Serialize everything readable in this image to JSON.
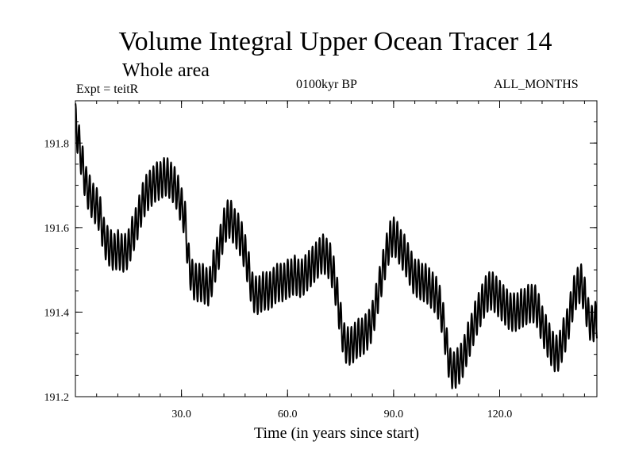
{
  "chart_data": {
    "type": "line",
    "title": "Volume Integral Upper Ocean Tracer 14",
    "subtitle": "Whole area",
    "annotations": {
      "experiment": "Expt = teitR",
      "period": "0100kyr BP",
      "months": "ALL_MONTHS"
    },
    "xlabel": "Time (in years since start)",
    "ylabel": "",
    "xlim": [
      0,
      147.5
    ],
    "ylim": [
      191.2,
      191.9
    ],
    "x_ticks": [
      30,
      60,
      90,
      120
    ],
    "x_tick_labels": [
      "30.0",
      "60.0",
      "90.0",
      "120.0"
    ],
    "y_ticks": [
      191.2,
      191.4,
      191.6,
      191.8
    ],
    "y_tick_labels": [
      "191.2",
      "191.4",
      "191.6",
      "191.8"
    ],
    "grid": false,
    "line_color": "#000000",
    "seasonal_cycle_amplitude": 0.045,
    "series": [
      {
        "x": [
          0,
          1,
          2,
          3,
          4,
          5,
          6,
          7,
          8,
          9,
          10,
          11,
          12,
          13,
          14,
          15,
          16,
          17,
          18,
          19,
          20,
          21,
          22,
          23,
          24,
          25,
          26,
          27,
          28,
          29,
          30,
          31,
          32,
          33,
          34,
          35,
          36,
          37,
          38,
          39,
          40,
          41,
          42,
          43,
          44,
          45,
          46,
          47,
          48,
          49,
          50,
          51,
          52,
          53,
          54,
          55,
          56,
          57,
          58,
          59,
          60,
          61,
          62,
          63,
          64,
          65,
          66,
          67,
          68,
          69,
          70,
          71,
          72,
          73,
          74,
          75,
          76,
          77,
          78,
          79,
          80,
          81,
          82,
          83,
          84,
          85,
          86,
          87,
          88,
          89,
          90,
          91,
          92,
          93,
          94,
          95,
          96,
          97,
          98,
          99,
          100,
          101,
          102,
          103,
          104,
          105,
          106,
          107,
          108,
          109,
          110,
          111,
          112,
          113,
          114,
          115,
          116,
          117,
          118,
          119,
          120,
          121,
          122,
          123,
          124,
          125,
          126,
          127,
          128,
          129,
          130,
          131,
          132,
          133,
          134,
          135,
          136,
          137,
          138,
          139,
          140,
          141,
          142,
          143,
          144,
          145,
          146,
          147
        ],
        "y": [
          191.85,
          191.8,
          191.75,
          191.7,
          191.68,
          191.66,
          191.65,
          191.63,
          191.58,
          191.56,
          191.55,
          191.54,
          191.55,
          191.54,
          191.54,
          191.55,
          191.58,
          191.6,
          191.63,
          191.66,
          191.68,
          191.69,
          191.7,
          191.71,
          191.71,
          191.72,
          191.72,
          191.71,
          191.7,
          191.68,
          191.65,
          191.62,
          191.52,
          191.48,
          191.47,
          191.47,
          191.47,
          191.46,
          191.46,
          191.5,
          191.53,
          191.56,
          191.6,
          191.62,
          191.62,
          191.6,
          191.59,
          191.57,
          191.54,
          191.5,
          191.45,
          191.44,
          191.44,
          191.45,
          191.45,
          191.45,
          191.46,
          191.47,
          191.47,
          191.47,
          191.48,
          191.48,
          191.49,
          191.48,
          191.48,
          191.49,
          191.5,
          191.51,
          191.52,
          191.53,
          191.54,
          191.53,
          191.52,
          191.49,
          191.44,
          191.38,
          191.33,
          191.32,
          191.32,
          191.33,
          191.34,
          191.34,
          191.35,
          191.36,
          191.38,
          191.42,
          191.46,
          191.5,
          191.54,
          191.57,
          191.58,
          191.57,
          191.55,
          191.54,
          191.52,
          191.5,
          191.48,
          191.48,
          191.47,
          191.47,
          191.46,
          191.45,
          191.44,
          191.42,
          191.38,
          191.32,
          191.27,
          191.26,
          191.27,
          191.28,
          191.3,
          191.33,
          191.35,
          191.38,
          191.4,
          191.42,
          191.44,
          191.45,
          191.45,
          191.44,
          191.43,
          191.42,
          191.41,
          191.4,
          191.4,
          191.4,
          191.41,
          191.41,
          191.42,
          191.42,
          191.42,
          191.4,
          191.37,
          191.35,
          191.33,
          191.31,
          191.3,
          191.31,
          191.34,
          191.36,
          191.4,
          191.44,
          191.46,
          191.47,
          191.44,
          191.39,
          191.37,
          191.38
        ]
      }
    ]
  }
}
